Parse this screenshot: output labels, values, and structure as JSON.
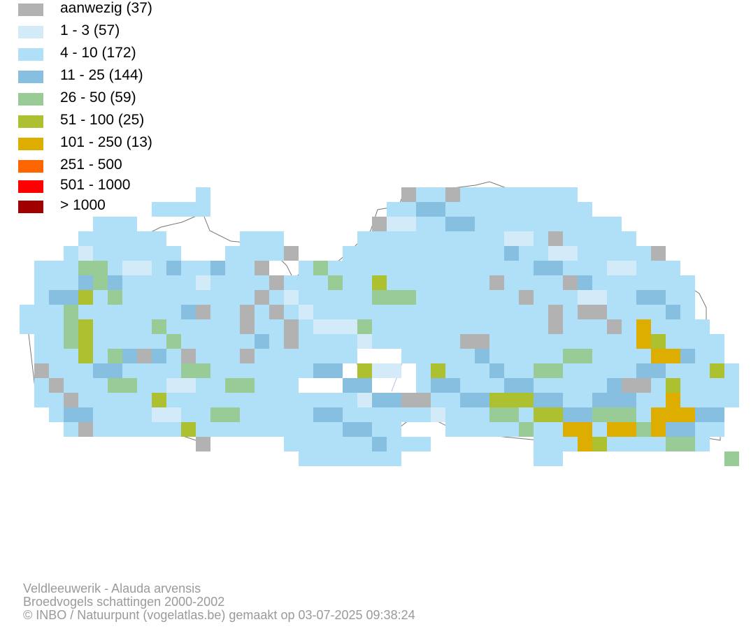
{
  "legend": [
    {
      "label": "aanwezig (37)",
      "color": "#b2b2b2"
    },
    {
      "label": "1 - 3 (57)",
      "color": "#d3ebf9"
    },
    {
      "label": "4 - 10 (172)",
      "color": "#b0e0f8"
    },
    {
      "label": "11 - 25 (144)",
      "color": "#87bfe0"
    },
    {
      "label": "26 - 50 (59)",
      "color": "#98cb95"
    },
    {
      "label": "51 - 100 (25)",
      "color": "#adc030"
    },
    {
      "label": "101 - 250 (13)",
      "color": "#ddae00"
    },
    {
      "label": "251 - 500",
      "color": "#ff6600"
    },
    {
      "label": "501 - 1000",
      "color": "#ff0000"
    },
    {
      "label": "> 1000",
      "color": "#a00000"
    }
  ],
  "credits": {
    "species": "Veldleeuwerik - Alauda arvensis",
    "dataset": "Broedvogels schattingen 2000-2002",
    "copyright": "© INBO / Natuurpunt (vogelatlas.be) gemaakt op 03-07-2025 09:38:24"
  },
  "map_cells": {
    "grid_origin_col_row": [
      28,
      268
    ],
    "cell_size_map_units": 21,
    "rows": [
      {
        "r": 0,
        "cells": "...........................G..G...BBB.HH."
      },
      {
        "r": 1,
        "cells": "...........................D.BBBBBBBBHH."
      },
      {
        "r": 2,
        "cells": "............H........G.BBBBBBBDBBBBB..."
      },
      {
        "r": 3,
        "cells": "..........DDDD.......GBBDBBDBBBBBBG...."
      },
      {
        "r": 4,
        "cells": ".........BBDDGDBBBGB..BBAGBBBBBBBBBBB.."
      },
      {
        "r": 5,
        "cells": ".......BBBBB..GDBBBBBBBBBBBBBBBBBBBBG.."
      },
      {
        "r": 6,
        "cells": "....BBBBDBBBBGBBBBBBGGE..ABBBGBBBBBBBB."
      },
      {
        "r": 7,
        "cells": "..BBBCBBBBBBBBBBBBBGBBB..BB.AABBBBBBBB."
      },
      {
        "r": 8,
        "cells": "..DBBBBBBBBBBBBBBBBBBBBB.BBBBBBBBBDBBBBD"
      },
      {
        "r": 9,
        "cells": "..BBEDDDBBGBBBBBBGBBBBBBBBBBGBBFBGBBBBB."
      },
      {
        "r": 10,
        "cells": "BEBEDBBBBEBBBBBBBBBGBBGBB...BDEBBBBFBBBB"
      },
      {
        "r": 11,
        "cells": ".EEEEBBBBBEBBGBBBBBBBBBBBBBBBBBBBBFFBBB."
      },
      {
        "r": 12,
        "cells": ".BEEEBBBBBBGBBBBBBBBBBBBBBBBBBGBBBBEBBB."
      },
      {
        "r": 13,
        "cells": ".BEEBBBBBBBGBBBBBBBBBBBBBBBBBGGBFBBBBEB."
      },
      {
        "r": 14,
        "cells": ".BBBBBBBBBBBBBBBBBBBBBFBBBBBBBEFBBBBEEB."
      },
      {
        "r": 15,
        "cells": ".BBBEEBBBBBBBBBBBBBBBBBBBBBBBEEBBBBBFFBB"
      },
      {
        "r": 16,
        "cells": "..BBBBBBBBEBBBBBBBBBBBBBBBBBBEFFFFBGFFB."
      },
      {
        "r": 17,
        "cells": "...BBBBBBBBBBBBBBBBBBBBBBBBBBGEFFEEBBFBB"
      },
      {
        "r": 18,
        "cells": "...BBBBBBBBBBB.....BBBBBBBBBBBEFGGBBBBBG"
      },
      {
        "r": 19,
        "cells": ".......................BBBBBBBBBBB......"
      }
    ]
  }
}
